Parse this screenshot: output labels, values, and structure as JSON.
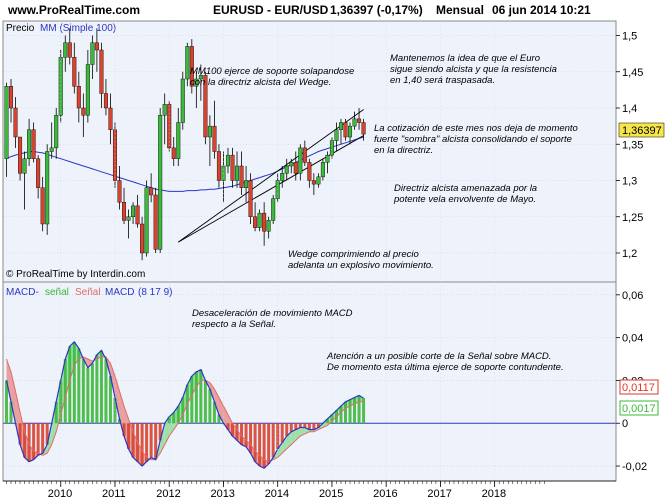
{
  "header": {
    "site": "www.ProRealTime.com",
    "instrument": "EURUSD - EUR/USD",
    "last": "1,36397 (-0,17%)",
    "period": "Mensual",
    "datetime": "06 jun 2014 10:21"
  },
  "watermark": "© ProRealTime by Interdin.com",
  "colors": {
    "up": "#3cb83c",
    "down": "#d8432f",
    "ma": "#2b36c8",
    "trend": "#000000",
    "macd": "#2b36c8",
    "signal": "#e26a6a",
    "macd_fill_up": "#9fe0a8",
    "macd_fill_down": "#e8a0a0",
    "panel_bg": "#eef2fb",
    "last_price_box": "#f7e64a",
    "macd_box": "#e0342a",
    "hist_box": "#3cb83c"
  },
  "chart_data": [
    {
      "type": "candlestick",
      "title": "EURUSD - EUR/USD",
      "legend": {
        "price": "Precio",
        "ma": "MM (Simple 100)"
      },
      "ylim": [
        1.16,
        1.52
      ],
      "yticks": [
        "1,2",
        "1,25",
        "1,3",
        "1,35",
        "1,4",
        "1,45",
        "1,5"
      ],
      "last_price_label": "1,36397",
      "candles": [
        [
          1.33,
          1.435,
          1.305,
          1.43
        ],
        [
          1.43,
          1.44,
          1.38,
          1.4
        ],
        [
          1.4,
          1.415,
          1.345,
          1.36
        ],
        [
          1.36,
          1.36,
          1.3,
          1.31
        ],
        [
          1.31,
          1.34,
          1.26,
          1.33
        ],
        [
          1.33,
          1.385,
          1.32,
          1.37
        ],
        [
          1.37,
          1.38,
          1.325,
          1.33
        ],
        [
          1.33,
          1.335,
          1.275,
          1.29
        ],
        [
          1.29,
          1.305,
          1.23,
          1.24
        ],
        [
          1.24,
          1.35,
          1.225,
          1.34
        ],
        [
          1.34,
          1.38,
          1.33,
          1.345
        ],
        [
          1.345,
          1.4,
          1.33,
          1.39
        ],
        [
          1.39,
          1.48,
          1.38,
          1.47
        ],
        [
          1.47,
          1.5,
          1.45,
          1.49
        ],
        [
          1.49,
          1.51,
          1.46,
          1.47
        ],
        [
          1.47,
          1.49,
          1.42,
          1.43
        ],
        [
          1.43,
          1.45,
          1.38,
          1.4
        ],
        [
          1.4,
          1.42,
          1.36,
          1.39
        ],
        [
          1.39,
          1.48,
          1.38,
          1.46
        ],
        [
          1.46,
          1.5,
          1.44,
          1.49
        ],
        [
          1.49,
          1.51,
          1.45,
          1.48
        ],
        [
          1.48,
          1.49,
          1.4,
          1.42
        ],
        [
          1.42,
          1.44,
          1.39,
          1.4
        ],
        [
          1.4,
          1.42,
          1.35,
          1.37
        ],
        [
          1.37,
          1.38,
          1.29,
          1.3
        ],
        [
          1.3,
          1.32,
          1.26,
          1.27
        ],
        [
          1.27,
          1.29,
          1.24,
          1.245
        ],
        [
          1.245,
          1.26,
          1.22,
          1.25
        ],
        [
          1.25,
          1.27,
          1.24,
          1.265
        ],
        [
          1.265,
          1.28,
          1.235,
          1.24
        ],
        [
          1.24,
          1.25,
          1.19,
          1.2
        ],
        [
          1.2,
          1.3,
          1.195,
          1.29
        ],
        [
          1.29,
          1.31,
          1.27,
          1.28
        ],
        [
          1.28,
          1.29,
          1.2,
          1.205
        ],
        [
          1.205,
          1.4,
          1.2,
          1.39
        ],
        [
          1.39,
          1.42,
          1.35,
          1.405
        ],
        [
          1.405,
          1.41,
          1.34,
          1.345
        ],
        [
          1.345,
          1.36,
          1.32,
          1.33
        ],
        [
          1.33,
          1.4,
          1.32,
          1.38
        ],
        [
          1.38,
          1.45,
          1.37,
          1.44
        ],
        [
          1.44,
          1.49,
          1.43,
          1.485
        ],
        [
          1.485,
          1.495,
          1.42,
          1.43
        ],
        [
          1.43,
          1.45,
          1.4,
          1.44
        ],
        [
          1.44,
          1.46,
          1.41,
          1.445
        ],
        [
          1.445,
          1.45,
          1.35,
          1.36
        ],
        [
          1.36,
          1.39,
          1.32,
          1.375
        ],
        [
          1.375,
          1.41,
          1.33,
          1.34
        ],
        [
          1.34,
          1.35,
          1.29,
          1.3
        ],
        [
          1.3,
          1.34,
          1.27,
          1.32
        ],
        [
          1.32,
          1.345,
          1.31,
          1.335
        ],
        [
          1.335,
          1.345,
          1.29,
          1.3
        ],
        [
          1.3,
          1.34,
          1.29,
          1.32
        ],
        [
          1.32,
          1.34,
          1.28,
          1.29
        ],
        [
          1.29,
          1.32,
          1.27,
          1.3
        ],
        [
          1.3,
          1.31,
          1.24,
          1.25
        ],
        [
          1.25,
          1.27,
          1.23,
          1.235
        ],
        [
          1.235,
          1.26,
          1.23,
          1.255
        ],
        [
          1.255,
          1.27,
          1.21,
          1.23
        ],
        [
          1.23,
          1.25,
          1.22,
          1.245
        ],
        [
          1.245,
          1.28,
          1.24,
          1.275
        ],
        [
          1.275,
          1.31,
          1.27,
          1.3
        ],
        [
          1.3,
          1.32,
          1.29,
          1.31
        ],
        [
          1.31,
          1.33,
          1.3,
          1.32
        ],
        [
          1.32,
          1.33,
          1.31,
          1.325
        ],
        [
          1.325,
          1.34,
          1.3,
          1.31
        ],
        [
          1.31,
          1.35,
          1.3,
          1.345
        ],
        [
          1.345,
          1.355,
          1.32,
          1.325
        ],
        [
          1.325,
          1.33,
          1.29,
          1.3
        ],
        [
          1.3,
          1.31,
          1.28,
          1.295
        ],
        [
          1.295,
          1.31,
          1.29,
          1.305
        ],
        [
          1.305,
          1.33,
          1.3,
          1.325
        ],
        [
          1.325,
          1.34,
          1.31,
          1.335
        ],
        [
          1.335,
          1.36,
          1.33,
          1.355
        ],
        [
          1.355,
          1.38,
          1.34,
          1.37
        ],
        [
          1.37,
          1.385,
          1.35,
          1.38
        ],
        [
          1.38,
          1.385,
          1.355,
          1.36
        ],
        [
          1.36,
          1.38,
          1.35,
          1.375
        ],
        [
          1.375,
          1.395,
          1.37,
          1.385
        ],
        [
          1.385,
          1.4,
          1.37,
          1.38
        ],
        [
          1.38,
          1.385,
          1.355,
          1.364
        ]
      ],
      "ma": [
        1.33,
        1.333,
        1.335,
        1.337,
        1.338,
        1.34,
        1.34,
        1.339,
        1.338,
        1.336,
        1.334,
        1.332,
        1.33,
        1.328,
        1.326,
        1.324,
        1.322,
        1.32,
        1.318,
        1.316,
        1.314,
        1.312,
        1.31,
        1.308,
        1.306,
        1.304,
        1.302,
        1.3,
        1.298,
        1.296,
        1.294,
        1.292,
        1.29,
        1.288,
        1.287,
        1.286,
        1.285,
        1.285,
        1.285,
        1.285,
        1.286,
        1.286,
        1.286,
        1.287,
        1.287,
        1.288,
        1.288,
        1.289,
        1.29,
        1.291,
        1.292,
        1.294,
        1.296,
        1.298,
        1.3,
        1.302,
        1.304,
        1.306,
        1.308,
        1.31,
        1.313,
        1.316,
        1.319,
        1.322,
        1.325,
        1.328,
        1.331,
        1.334,
        1.337,
        1.34,
        1.342,
        1.344,
        1.346,
        1.348,
        1.35,
        1.352,
        1.354,
        1.356,
        1.358,
        1.36
      ],
      "trendlines": [
        {
          "x1": 38,
          "y1": 1.215,
          "x2": 79,
          "y2": 1.362
        },
        {
          "x1": 38,
          "y1": 1.215,
          "x2": 79,
          "y2": 1.398
        }
      ],
      "annotations": [
        {
          "lines": [
            "MM100 ejerce de soporte solapandose",
            "con la directriz alcista del Wedge."
          ]
        },
        {
          "lines": [
            "Mantenemos la idea de que el Euro",
            "sigue siendo alcista y que la resistencia",
            "en 1,40 será traspasada."
          ]
        },
        {
          "lines": [
            "La cotización de este mes nos deja de momento",
            "fuerte \"sombra\" alcista consolidando el soporte",
            "en la directriz."
          ]
        },
        {
          "lines": [
            "Directriz alcista amenazada por la",
            "potente vela envolvente de Mayo."
          ]
        },
        {
          "lines": [
            "Wedge comprimiendo al precio",
            "adelanta un explosivo movimiento."
          ]
        }
      ]
    },
    {
      "type": "bar",
      "title": "MACD",
      "legend": {
        "macd": "MACD-",
        "signal_word": "señal",
        "signal_name": "Señal",
        "name": "MACD",
        "params": "(8 17 9)"
      },
      "ylim": [
        -0.027,
        0.066
      ],
      "yticks": [
        "0,06",
        "0,04",
        "0,02",
        "0",
        "-0,02"
      ],
      "macd_label": "0,0117",
      "hist_label": "0,0017",
      "macd": [
        0.02,
        0.01,
        0.0,
        -0.01,
        -0.016,
        -0.018,
        -0.017,
        -0.015,
        -0.014,
        -0.01,
        0.0,
        0.01,
        0.02,
        0.03,
        0.036,
        0.038,
        0.035,
        0.03,
        0.026,
        0.028,
        0.032,
        0.034,
        0.03,
        0.022,
        0.012,
        0.002,
        -0.006,
        -0.012,
        -0.016,
        -0.018,
        -0.02,
        -0.018,
        -0.016,
        -0.017,
        -0.008,
        0.0,
        0.003,
        0.005,
        0.008,
        0.012,
        0.018,
        0.022,
        0.024,
        0.025,
        0.02,
        0.016,
        0.01,
        0.004,
        0.0,
        -0.003,
        -0.006,
        -0.008,
        -0.01,
        -0.011,
        -0.014,
        -0.018,
        -0.02,
        -0.021,
        -0.019,
        -0.016,
        -0.012,
        -0.009,
        -0.006,
        -0.004,
        -0.003,
        -0.002,
        -0.002,
        -0.003,
        -0.003,
        -0.002,
        0.0,
        0.002,
        0.004,
        0.006,
        0.008,
        0.01,
        0.011,
        0.012,
        0.013,
        0.0117
      ],
      "signal": [
        0.03,
        0.024,
        0.015,
        0.005,
        -0.004,
        -0.01,
        -0.013,
        -0.014,
        -0.015,
        -0.014,
        -0.01,
        -0.004,
        0.004,
        0.012,
        0.02,
        0.027,
        0.03,
        0.031,
        0.03,
        0.029,
        0.03,
        0.031,
        0.031,
        0.028,
        0.022,
        0.015,
        0.008,
        0.002,
        -0.004,
        -0.009,
        -0.013,
        -0.016,
        -0.017,
        -0.017,
        -0.014,
        -0.01,
        -0.006,
        -0.003,
        0.0,
        0.004,
        0.009,
        0.013,
        0.017,
        0.02,
        0.02,
        0.019,
        0.016,
        0.012,
        0.008,
        0.004,
        0.0,
        -0.003,
        -0.006,
        -0.008,
        -0.01,
        -0.013,
        -0.015,
        -0.017,
        -0.018,
        -0.017,
        -0.016,
        -0.014,
        -0.012,
        -0.01,
        -0.008,
        -0.006,
        -0.005,
        -0.004,
        -0.004,
        -0.003,
        -0.002,
        -0.001,
        0.001,
        0.003,
        0.005,
        0.007,
        0.008,
        0.009,
        0.01,
        0.01
      ],
      "annotations": [
        {
          "lines": [
            "Desaceleración de movimiento MACD",
            "respecto a la Señal."
          ]
        },
        {
          "lines": [
            "Atención a un posible corte de la Señal sobre MACD.",
            "De momento esta última ejerce de soporte contundente."
          ]
        }
      ]
    }
  ],
  "x_axis": {
    "years": [
      "2010",
      "2011",
      "2012",
      "2013",
      "2014",
      "2015",
      "2016",
      "2017",
      "2018"
    ]
  }
}
